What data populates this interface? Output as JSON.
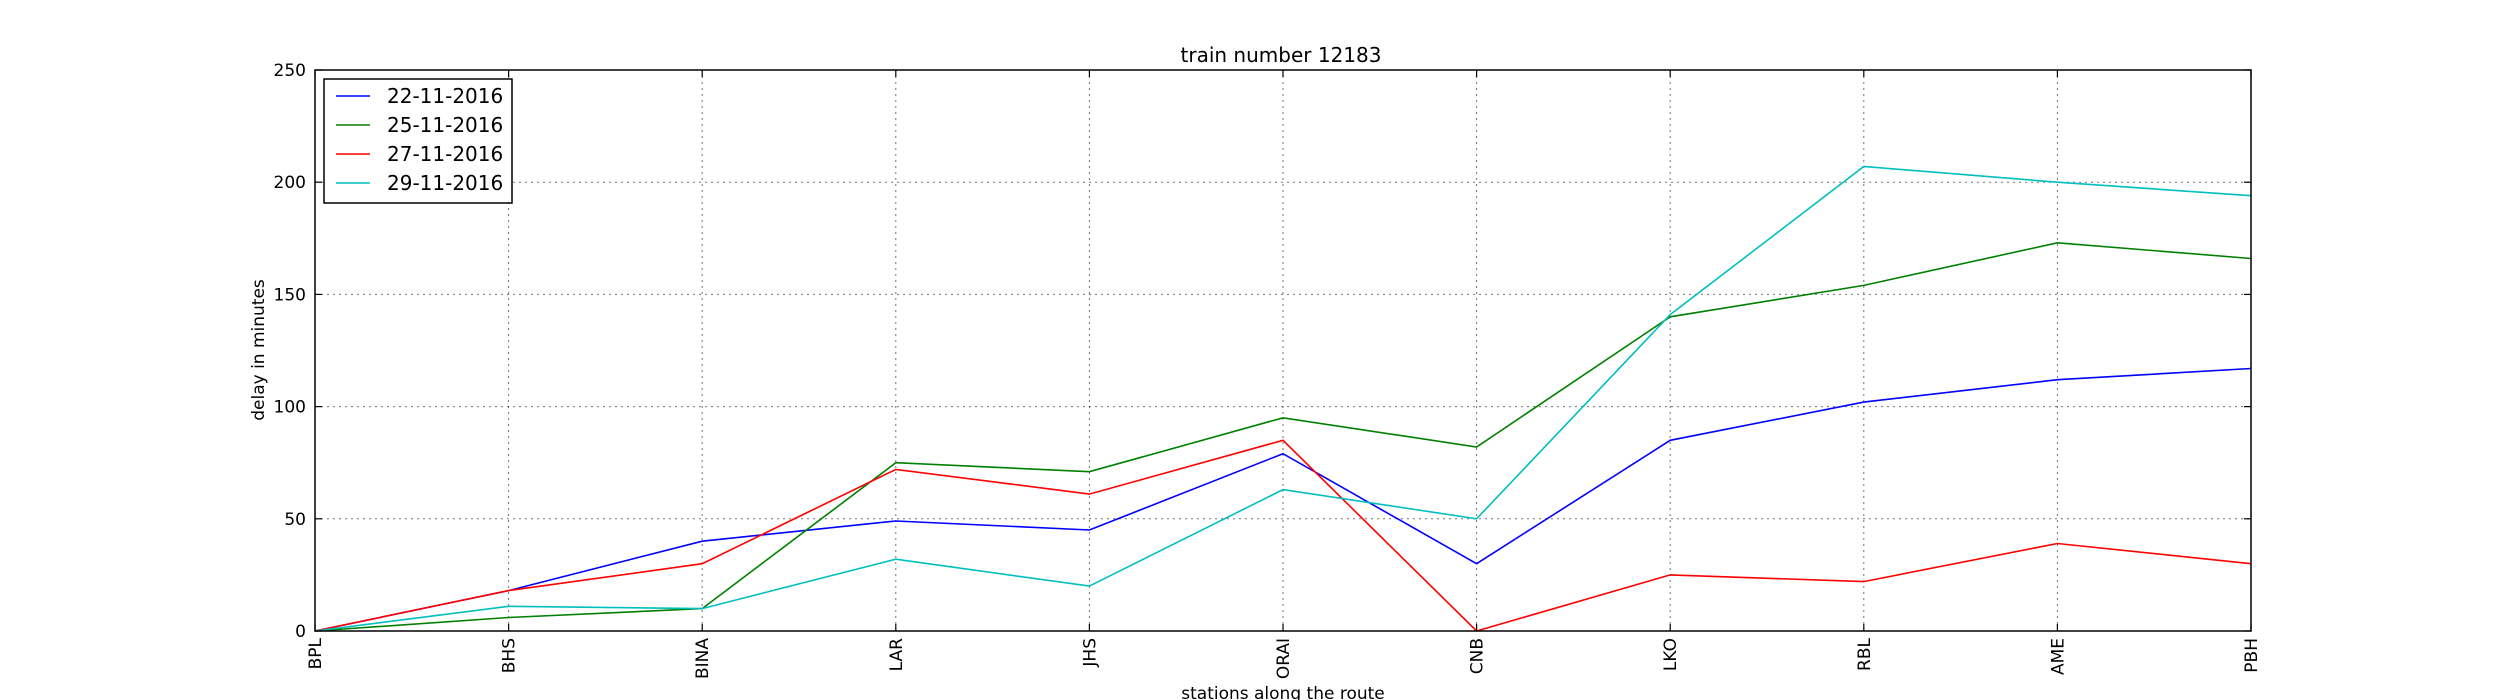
{
  "chart_data": {
    "type": "line",
    "title": "train number 12183",
    "xlabel": "stations along the route",
    "ylabel": "delay in minutes",
    "categories": [
      "BPL",
      "BHS",
      "BINA",
      "LAR",
      "JHS",
      "ORAI",
      "CNB",
      "LKO",
      "RBL",
      "AME",
      "PBH"
    ],
    "ylim": [
      0,
      250
    ],
    "yticks": [
      0,
      50,
      100,
      150,
      200,
      250
    ],
    "grid": true,
    "legend_position": "top-left",
    "series": [
      {
        "name": "22-11-2016",
        "color": "#0000ff",
        "values": [
          0,
          18,
          40,
          49,
          45,
          79,
          30,
          85,
          102,
          112,
          117
        ]
      },
      {
        "name": "25-11-2016",
        "color": "#008000",
        "values": [
          0,
          6,
          10,
          75,
          71,
          95,
          82,
          140,
          154,
          173,
          166
        ]
      },
      {
        "name": "27-11-2016",
        "color": "#ff0000",
        "values": [
          0,
          18,
          30,
          72,
          61,
          85,
          0,
          25,
          22,
          39,
          30
        ]
      },
      {
        "name": "29-11-2016",
        "color": "#00bfbf",
        "values": [
          0,
          11,
          10,
          32,
          20,
          63,
          50,
          141,
          207,
          200,
          194
        ]
      }
    ]
  }
}
